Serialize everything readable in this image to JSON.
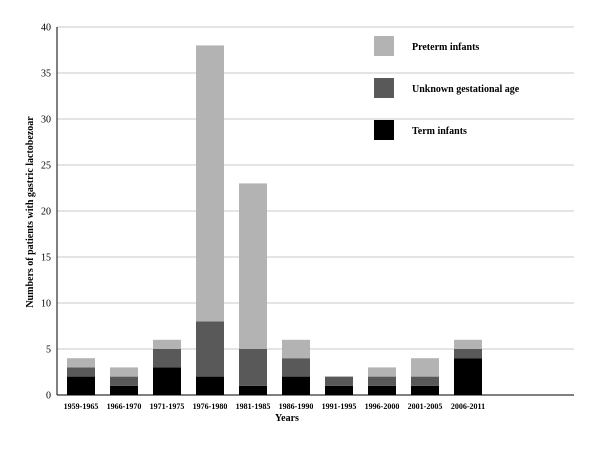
{
  "chart_data": {
    "type": "bar",
    "stacked": true,
    "title": "",
    "xlabel": "Years",
    "ylabel": "Numbers of patients with gastric lactobezoar",
    "ylim": [
      0,
      40
    ],
    "yticks": [
      0,
      5,
      10,
      15,
      20,
      25,
      30,
      35,
      40
    ],
    "grid": true,
    "legend_position": "top-right",
    "categories": [
      "1959-1965",
      "1966-1970",
      "1971-1975",
      "1976-1980",
      "1981-1985",
      "1986-1990",
      "1991-1995",
      "1996-2000",
      "2001-2005",
      "2006-2011"
    ],
    "series": [
      {
        "name": "Term infants",
        "color": "#000000",
        "values": [
          2,
          1,
          3,
          2,
          1,
          2,
          1,
          1,
          1,
          4
        ]
      },
      {
        "name": "Unknown gestational age",
        "color": "#595959",
        "values": [
          1,
          1,
          2,
          6,
          4,
          2,
          1,
          1,
          1,
          1
        ]
      },
      {
        "name": "Preterm infants",
        "color": "#b3b3b3",
        "values": [
          1,
          1,
          1,
          30,
          18,
          2,
          0,
          1,
          2,
          1
        ]
      }
    ],
    "legend_order": [
      "Preterm infants",
      "Unknown gestational age",
      "Term infants"
    ]
  }
}
